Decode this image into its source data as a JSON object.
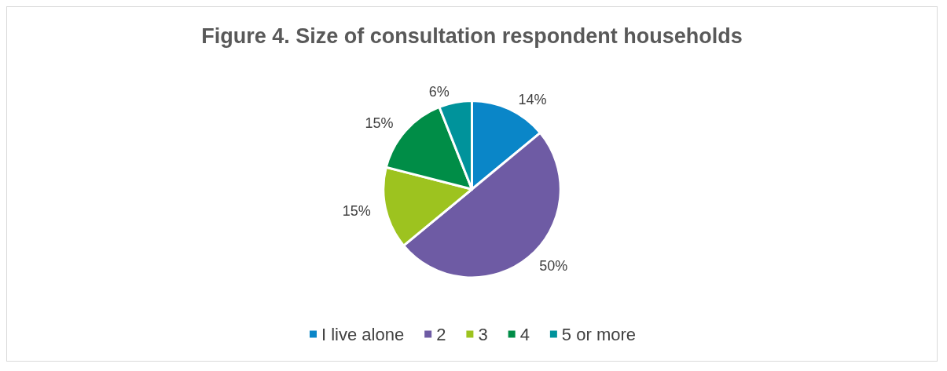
{
  "chart_data": {
    "type": "pie",
    "title": "Figure 4. Size of consultation respondent households",
    "categories": [
      "I live alone",
      "2",
      "3",
      "4",
      "5 or more"
    ],
    "values": [
      14,
      50,
      15,
      15,
      6
    ],
    "colors": [
      "#0a86c8",
      "#6e5ba4",
      "#9dc31f",
      "#008d47",
      "#00939b"
    ],
    "value_labels": [
      "14%",
      "50%",
      "15%",
      "15%",
      "6%"
    ],
    "legend": "bottom"
  }
}
